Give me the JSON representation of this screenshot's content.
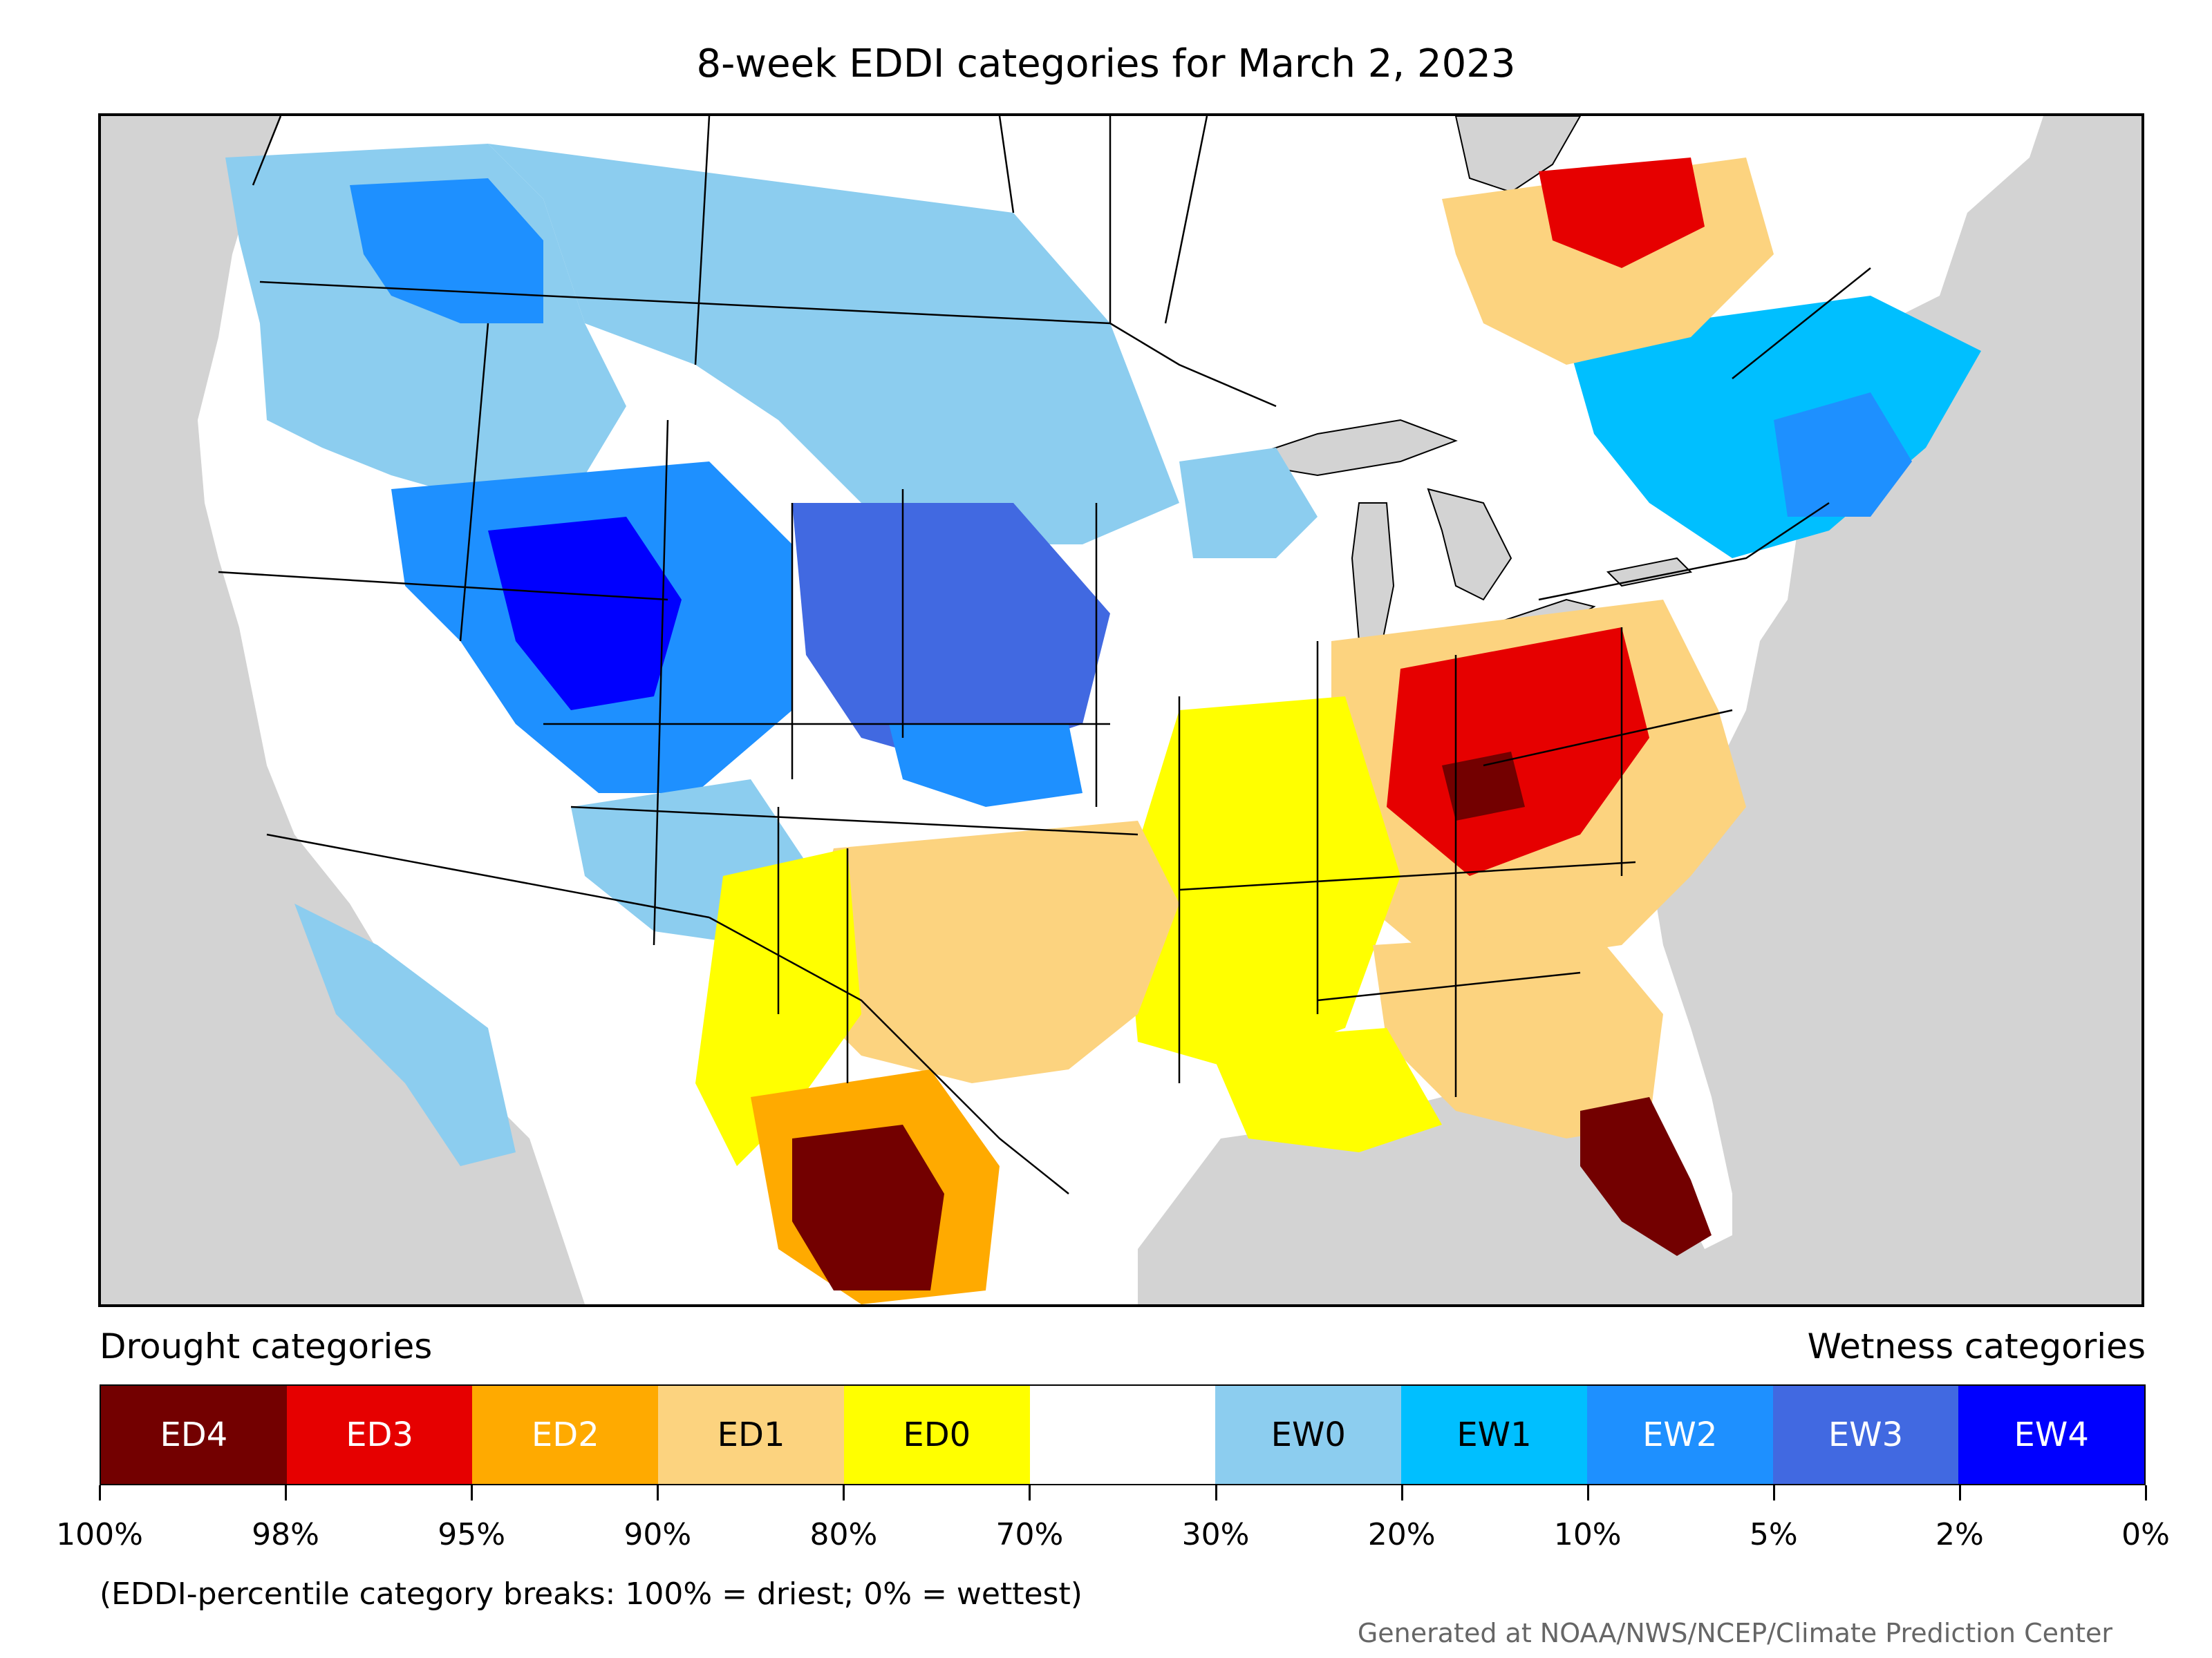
{
  "title": "8-week EDDI categories for March 2, 2023",
  "legend": {
    "left_label": "Drought categories",
    "right_label": "Wetness categories",
    "categories": [
      {
        "label": "ED4",
        "color": "#730000",
        "text_color": "#ffffff"
      },
      {
        "label": "ED3",
        "color": "#e60000",
        "text_color": "#ffffff"
      },
      {
        "label": "ED2",
        "color": "#ffaa00",
        "text_color": "#ffffff"
      },
      {
        "label": "ED1",
        "color": "#fcd37f",
        "text_color": "#000000"
      },
      {
        "label": "ED0",
        "color": "#ffff00",
        "text_color": "#000000"
      },
      {
        "label": "",
        "color": "#ffffff",
        "text_color": "#000000"
      },
      {
        "label": "EW0",
        "color": "#8ccdef",
        "text_color": "#000000"
      },
      {
        "label": "EW1",
        "color": "#00bfff",
        "text_color": "#000000"
      },
      {
        "label": "EW2",
        "color": "#1e90ff",
        "text_color": "#ffffff"
      },
      {
        "label": "EW3",
        "color": "#4169e1",
        "text_color": "#ffffff"
      },
      {
        "label": "EW4",
        "color": "#0000ff",
        "text_color": "#ffffff"
      }
    ],
    "tick_labels": [
      "100%",
      "98%",
      "95%",
      "90%",
      "80%",
      "70%",
      "30%",
      "20%",
      "10%",
      "5%",
      "2%",
      "0%"
    ]
  },
  "note": "(EDDI-percentile category breaks: 100% = driest; 0% = wettest)",
  "credit": "Generated at NOAA/NWS/NCEP/Climate Prediction Center",
  "colors": {
    "water": "#d3d3d3",
    "land": "#ffffff",
    "border": "#000000"
  }
}
